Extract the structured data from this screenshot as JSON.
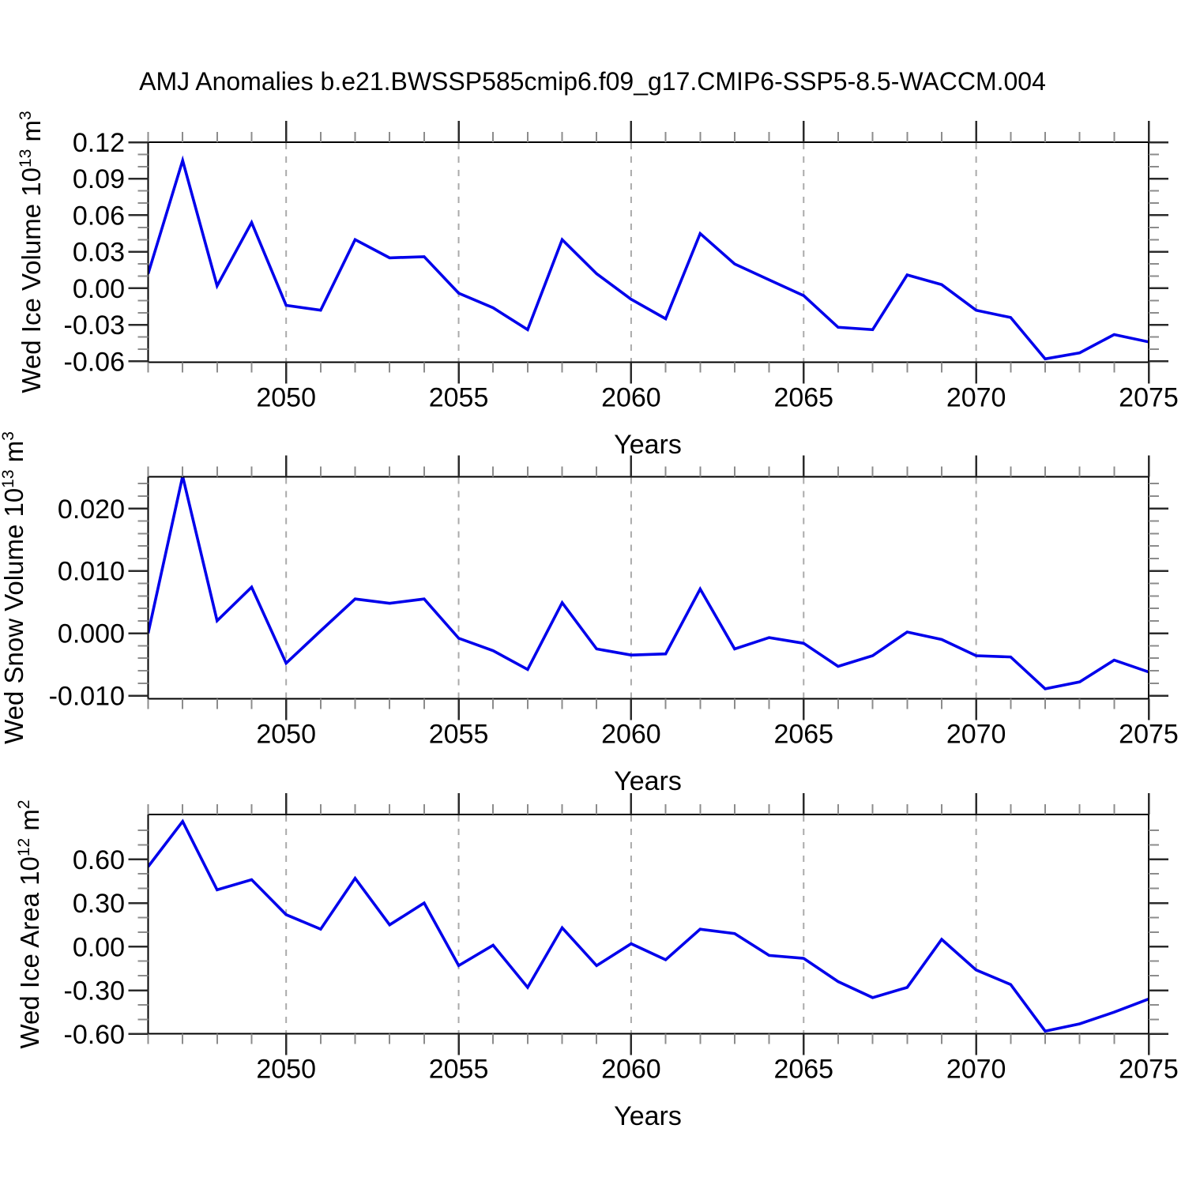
{
  "title": "AMJ Anomalies b.e21.BWSSP585cmip6.f09_g17.CMIP6-SSP5-8.5-WACCM.004",
  "colors": {
    "line": "#0000EB",
    "grid": "#AAAAAA",
    "axis": "#000000",
    "major_tick": "#2B2B2B",
    "minor_tick": "#8C8C8C",
    "text": "#000000",
    "background": "#FFFFFF"
  },
  "x_axis": {
    "label": "Years",
    "start": 2046,
    "end": 2075,
    "years": [
      2046,
      2047,
      2048,
      2049,
      2050,
      2051,
      2052,
      2053,
      2054,
      2055,
      2056,
      2057,
      2058,
      2059,
      2060,
      2061,
      2062,
      2063,
      2064,
      2065,
      2066,
      2067,
      2068,
      2069,
      2070,
      2071,
      2072,
      2073,
      2074,
      2075
    ],
    "ticks": [
      {
        "v": 2050,
        "label": "2050"
      },
      {
        "v": 2055,
        "label": "2055"
      },
      {
        "v": 2060,
        "label": "2060"
      },
      {
        "v": 2065,
        "label": "2065"
      },
      {
        "v": 2070,
        "label": "2070"
      },
      {
        "v": 2075,
        "label": "2075"
      }
    ],
    "minor_step": 1,
    "gridline_years": [
      2050,
      2055,
      2060,
      2065,
      2070
    ]
  },
  "chart_data": [
    {
      "id": "ice-volume",
      "type": "line",
      "title": "Wed Ice Volume anomalies",
      "ylabel": {
        "text": "Wed Ice Volume 10",
        "sup": "13",
        "unit": " m",
        "unit_sup": "3"
      },
      "ylim": [
        -0.0607,
        0.12
      ],
      "grid": "x-dashed",
      "legend": "none",
      "y_major_step": 0.03,
      "y_minor_step": 0.01,
      "y_ticks": [
        {
          "v": 0.12,
          "label": "0.12"
        },
        {
          "v": 0.09,
          "label": "0.09"
        },
        {
          "v": 0.06,
          "label": "0.06"
        },
        {
          "v": 0.03,
          "label": "0.03"
        },
        {
          "v": 0.0,
          "label": "0.00"
        },
        {
          "v": -0.03,
          "label": "-0.03"
        },
        {
          "v": -0.06,
          "label": "-0.06"
        }
      ],
      "values": [
        0.012,
        0.105,
        0.002,
        0.054,
        -0.014,
        -0.018,
        0.04,
        0.025,
        0.026,
        -0.004,
        -0.016,
        -0.034,
        0.04,
        0.012,
        -0.009,
        -0.025,
        0.045,
        0.02,
        0.007,
        -0.006,
        -0.032,
        -0.034,
        0.011,
        0.003,
        -0.018,
        -0.024,
        -0.058,
        -0.053,
        -0.038,
        -0.044
      ]
    },
    {
      "id": "snow-volume",
      "type": "line",
      "title": "Wed Snow Volume anomalies",
      "ylabel": {
        "text": "Wed Snow Volume 10",
        "sup": "13",
        "unit": " m",
        "unit_sup": "3"
      },
      "ylim": [
        -0.0105,
        0.0251
      ],
      "grid": "x-dashed",
      "legend": "none",
      "y_major_step": 0.01,
      "y_minor_step": 0.002,
      "y_ticks": [
        {
          "v": 0.02,
          "label": "0.020"
        },
        {
          "v": 0.01,
          "label": "0.010"
        },
        {
          "v": 0.0,
          "label": "0.000"
        },
        {
          "v": -0.01,
          "label": "-0.010"
        }
      ],
      "values": [
        0.0,
        0.0252,
        0.002,
        0.0074,
        -0.0048,
        0.0004,
        0.0055,
        0.0048,
        0.0055,
        -0.0008,
        -0.0028,
        -0.0058,
        0.0049,
        -0.0025,
        -0.0035,
        -0.0033,
        0.0071,
        -0.0025,
        -0.0007,
        -0.0016,
        -0.0053,
        -0.0036,
        0.0002,
        -0.001,
        -0.0036,
        -0.0038,
        -0.0089,
        -0.0078,
        -0.0043,
        -0.0062
      ]
    },
    {
      "id": "ice-area",
      "type": "line",
      "title": "Wed Ice Area anomalies",
      "ylabel": {
        "text": "Wed Ice Area 10",
        "sup": "12",
        "unit": " m",
        "unit_sup": "2"
      },
      "ylim": [
        -0.598,
        0.908
      ],
      "grid": "x-dashed",
      "legend": "none",
      "y_major_step": 0.3,
      "y_minor_step": 0.1,
      "y_ticks": [
        {
          "v": 0.6,
          "label": "0.60"
        },
        {
          "v": 0.3,
          "label": "0.30"
        },
        {
          "v": 0.0,
          "label": "0.00"
        },
        {
          "v": -0.3,
          "label": "-0.30"
        },
        {
          "v": -0.6,
          "label": "-0.60"
        }
      ],
      "values": [
        0.55,
        0.86,
        0.39,
        0.46,
        0.22,
        0.12,
        0.47,
        0.15,
        0.3,
        -0.13,
        0.01,
        -0.28,
        0.13,
        -0.13,
        0.02,
        -0.09,
        0.12,
        0.09,
        -0.06,
        -0.08,
        -0.24,
        -0.35,
        -0.28,
        0.05,
        -0.16,
        -0.26,
        -0.58,
        -0.53,
        -0.45,
        -0.36
      ]
    }
  ]
}
